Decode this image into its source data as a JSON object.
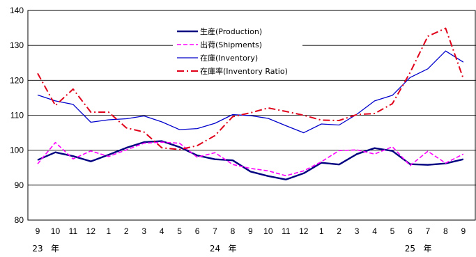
{
  "chart_data": {
    "type": "line",
    "title": "",
    "xlabel": "",
    "ylabel": "",
    "ylim": [
      80,
      140
    ],
    "yticks": [
      80,
      90,
      100,
      110,
      120,
      130,
      140
    ],
    "grid": "horizontal",
    "legend_position": "top-center",
    "categories": [
      "9",
      "10",
      "11",
      "12",
      "1",
      "2",
      "3",
      "4",
      "5",
      "6",
      "7",
      "8",
      "9",
      "10",
      "11",
      "12",
      "1",
      "2",
      "3",
      "4",
      "5",
      "6",
      "7",
      "8",
      "9"
    ],
    "year_labels": [
      {
        "index": 0,
        "year": "23",
        "unit": "年"
      },
      {
        "index": 10,
        "year": "24",
        "unit": "年"
      },
      {
        "index": 21,
        "year": "25",
        "unit": "年"
      }
    ],
    "series": [
      {
        "name": "生産(Production)",
        "color": "#000080",
        "style": "solid",
        "width": 2.4,
        "values": [
          97.2,
          99.4,
          98.3,
          96.8,
          98.7,
          100.7,
          102.3,
          102.6,
          100.9,
          98.5,
          97.4,
          97.1,
          93.9,
          92.6,
          91.6,
          93.4,
          96.4,
          95.9,
          98.9,
          100.6,
          99.8,
          96.0,
          95.8,
          96.2,
          97.4
        ]
      },
      {
        "name": "出荷(Shipments)",
        "color": "#ff00ff",
        "style": "dash",
        "width": 1.6,
        "values": [
          96.1,
          102.2,
          97.5,
          99.8,
          98.2,
          100.1,
          102.0,
          102.3,
          102.0,
          98.0,
          99.3,
          95.9,
          94.8,
          94.1,
          92.7,
          94.1,
          96.7,
          99.9,
          100.1,
          98.9,
          101.0,
          95.6,
          99.7,
          96.3,
          98.9
        ]
      },
      {
        "name": "在庫(Inventory)",
        "color": "#0000cc",
        "style": "solid",
        "width": 1.3,
        "values": [
          115.8,
          114.1,
          113.1,
          108.0,
          108.7,
          109.0,
          109.8,
          108.1,
          105.9,
          106.2,
          107.7,
          110.2,
          109.9,
          109.1,
          107.0,
          105.0,
          107.5,
          107.2,
          110.3,
          114.1,
          115.7,
          120.8,
          123.3,
          128.4,
          125.2
        ]
      },
      {
        "name": "在庫率(Inventory Ratio)",
        "color": "#e0001a",
        "style": "dashdot",
        "width": 2.0,
        "values": [
          122.0,
          112.8,
          117.5,
          110.9,
          110.9,
          106.4,
          105.2,
          100.7,
          100.2,
          101.3,
          104.2,
          109.6,
          110.7,
          112.1,
          111.1,
          110.0,
          108.6,
          108.5,
          110.2,
          110.5,
          113.3,
          122.2,
          132.6,
          134.9,
          120.5
        ]
      }
    ]
  }
}
